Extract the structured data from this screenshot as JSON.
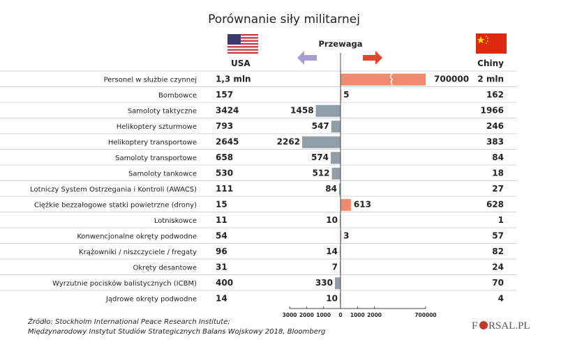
{
  "chart_data": {
    "type": "bar",
    "title": "Porównanie siły militarnej",
    "advantage_label": "Przewaga",
    "country_left": "USA",
    "country_right": "Chiny",
    "colors": {
      "usa_advantage": "#8f9ea7",
      "china_advantage": "#ef8a6c",
      "arrow_left": "#a99cd0",
      "arrow_right": "#e5452f",
      "grid": "#cfd3d6"
    },
    "rows": [
      {
        "category": "Personel w służbie czynnej",
        "usa": "1,3 mln",
        "china": "2 mln",
        "advantage": 700000,
        "side": "china",
        "advantage_label": "700000",
        "broken": true
      },
      {
        "category": "Bombowce",
        "usa": "157",
        "china": "162",
        "advantage": 5,
        "side": "china",
        "advantage_label": "5"
      },
      {
        "category": "Samoloty taktyczne",
        "usa": "3424",
        "china": "1966",
        "advantage": 1458,
        "side": "usa",
        "advantage_label": "1458"
      },
      {
        "category": "Helikoptery szturmowe",
        "usa": "793",
        "china": "246",
        "advantage": 547,
        "side": "usa",
        "advantage_label": "547"
      },
      {
        "category": "Helikoptery transportowe",
        "usa": "2645",
        "china": "383",
        "advantage": 2262,
        "side": "usa",
        "advantage_label": "2262"
      },
      {
        "category": "Samoloty transportowe",
        "usa": "658",
        "china": "84",
        "advantage": 574,
        "side": "usa",
        "advantage_label": "574"
      },
      {
        "category": "Samoloty tankowce",
        "usa": "530",
        "china": "18",
        "advantage": 512,
        "side": "usa",
        "advantage_label": "512"
      },
      {
        "category": "Lotniczy System Ostrzegania i Kontroli (AWACS)",
        "usa": "111",
        "china": "27",
        "advantage": 84,
        "side": "usa",
        "advantage_label": "84"
      },
      {
        "category": "Ciężkie bezzałogowe statki powietrzne (drony)",
        "usa": "15",
        "china": "628",
        "advantage": 613,
        "side": "china",
        "advantage_label": "613"
      },
      {
        "category": "Lotniskowce",
        "usa": "11",
        "china": "1",
        "advantage": 10,
        "side": "usa",
        "advantage_label": "10"
      },
      {
        "category": "Konwencjonalne okręty podwodne",
        "usa": "54",
        "china": "57",
        "advantage": 3,
        "side": "china",
        "advantage_label": "3"
      },
      {
        "category": "Krążowniki / niszczyciele / fregaty",
        "usa": "96",
        "china": "82",
        "advantage": 14,
        "side": "usa",
        "advantage_label": "14"
      },
      {
        "category": "Okręty desantowe",
        "usa": "31",
        "china": "24",
        "advantage": 7,
        "side": "usa",
        "advantage_label": "7"
      },
      {
        "category": "Wyrzutnie pocisków balistycznych (ICBM)",
        "usa": "400",
        "china": "70",
        "advantage": 330,
        "side": "usa",
        "advantage_label": "330"
      },
      {
        "category": "Jądrowe okręty podwodne",
        "usa": "14",
        "china": "4",
        "advantage": 10,
        "side": "usa",
        "advantage_label": "10"
      }
    ],
    "axis_ticks": [
      {
        "value": -3000,
        "label": "3000"
      },
      {
        "value": -2000,
        "label": "2000"
      },
      {
        "value": -1000,
        "label": "1000"
      },
      {
        "value": 0,
        "label": "0"
      },
      {
        "value": 1000,
        "label": "1000"
      },
      {
        "value": 2000,
        "label": "2000"
      },
      {
        "value": 700000,
        "label": "700000",
        "broken": true
      }
    ]
  },
  "source": {
    "line1": "Źródło: Stockholm International Peace Research Institute;",
    "line2": "Międzynarodowy Instytut Studiów Strategicznych Balans Wojskowy 2018, Bloomberg"
  },
  "logo": "FORSAL.PL"
}
